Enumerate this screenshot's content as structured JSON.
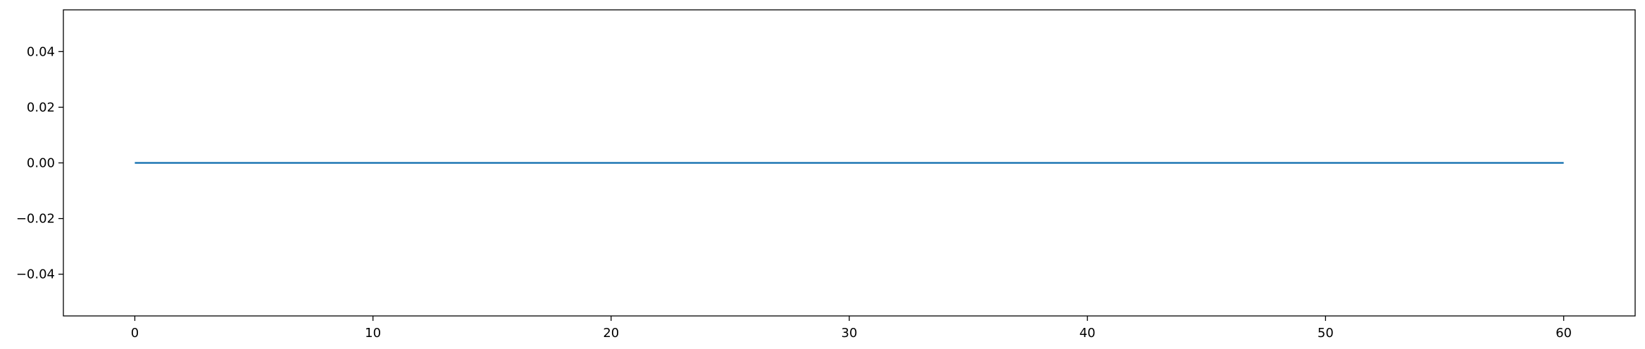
{
  "chart_data": {
    "type": "line",
    "title": "",
    "xlabel": "",
    "ylabel": "",
    "xlim": [
      -3,
      63
    ],
    "ylim": [
      -0.055,
      0.055
    ],
    "grid": false,
    "x_ticks": [
      0,
      10,
      20,
      30,
      40,
      50,
      60
    ],
    "x_tick_labels": [
      "0",
      "10",
      "20",
      "30",
      "40",
      "50",
      "60"
    ],
    "y_ticks": [
      -0.04,
      -0.02,
      0.0,
      0.02,
      0.04
    ],
    "y_tick_labels": [
      "−0.04",
      "−0.02",
      "0.00",
      "0.02",
      "0.04"
    ],
    "series": [
      {
        "color": "#1f77b4",
        "x": [
          0,
          60
        ],
        "y": [
          0,
          0
        ]
      }
    ]
  }
}
